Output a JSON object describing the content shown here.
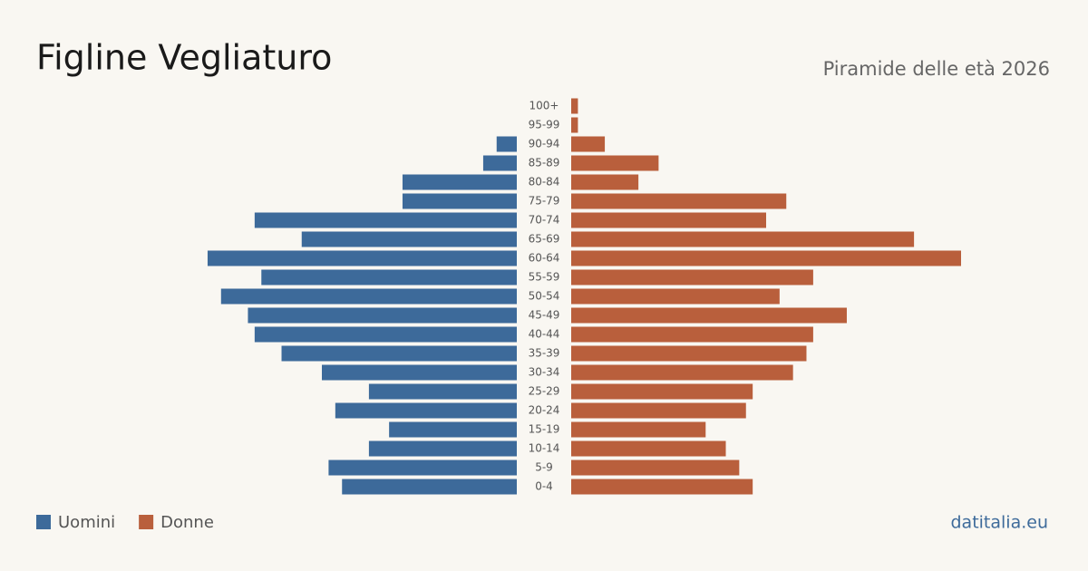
{
  "chart_data": {
    "type": "population-pyramid",
    "title": "Figline Vegliaturo",
    "subtitle": "Piramide delle età 2026",
    "source": "datitalia.eu",
    "categories": [
      "100+",
      "95-99",
      "90-94",
      "85-89",
      "80-84",
      "75-79",
      "70-74",
      "65-69",
      "60-64",
      "55-59",
      "50-54",
      "45-49",
      "40-44",
      "35-39",
      "30-34",
      "25-29",
      "20-24",
      "15-19",
      "10-14",
      "5-9",
      "0-4"
    ],
    "series": [
      {
        "name": "Uomini",
        "color": "#3d6a9a",
        "values": [
          0,
          0,
          3,
          5,
          17,
          17,
          39,
          32,
          46,
          38,
          44,
          40,
          39,
          35,
          29,
          22,
          27,
          19,
          22,
          28,
          26
        ]
      },
      {
        "name": "Donne",
        "color": "#b95f3c",
        "values": [
          1,
          1,
          5,
          13,
          10,
          32,
          29,
          51,
          58,
          36,
          31,
          41,
          36,
          35,
          33,
          27,
          26,
          20,
          23,
          25,
          27
        ]
      }
    ]
  }
}
